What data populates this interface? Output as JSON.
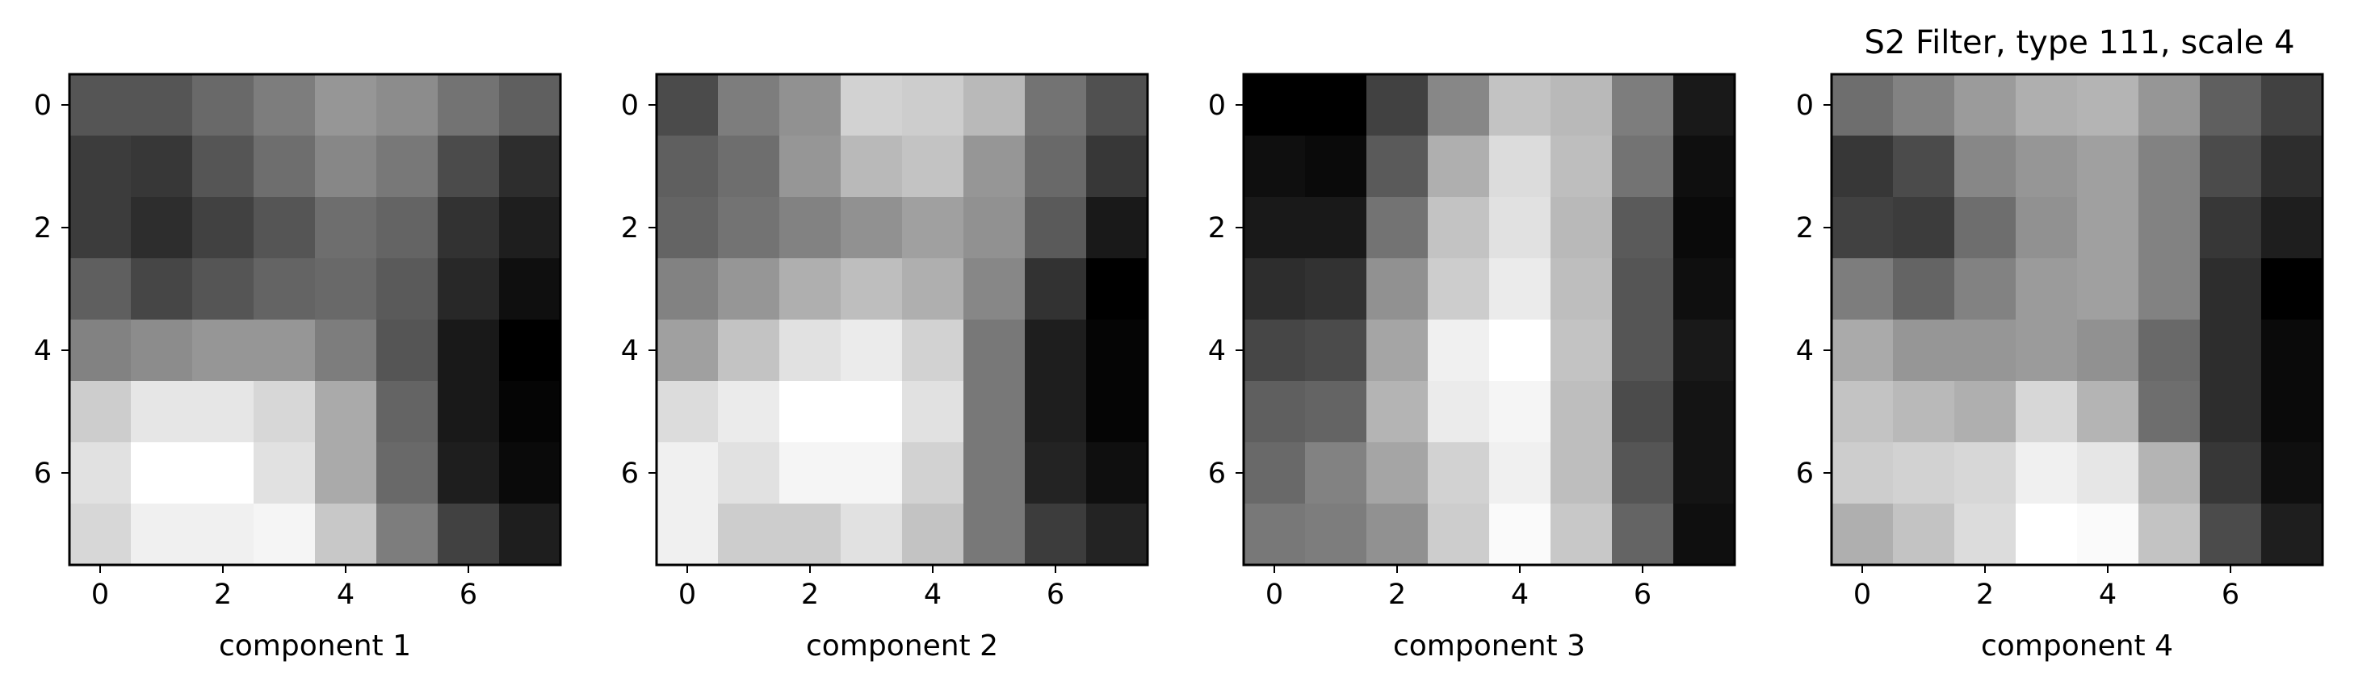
{
  "title": "S2 Filter, type 111, scale 4",
  "colormap": "gray",
  "chart_data": [
    {
      "type": "heatmap",
      "xlabel": "component 1",
      "xticks": [
        0,
        2,
        4,
        6
      ],
      "yticks": [
        0,
        2,
        4,
        6
      ],
      "xlim": [
        -0.5,
        7.5
      ],
      "ylim": [
        7.5,
        -0.5
      ],
      "values": [
        [
          85,
          85,
          105,
          125,
          150,
          140,
          115,
          95
        ],
        [
          60,
          55,
          85,
          110,
          135,
          120,
          75,
          45
        ],
        [
          60,
          45,
          65,
          85,
          110,
          100,
          50,
          30
        ],
        [
          95,
          70,
          85,
          100,
          105,
          90,
          40,
          15
        ],
        [
          130,
          140,
          150,
          150,
          125,
          85,
          25,
          0
        ],
        [
          205,
          230,
          230,
          215,
          170,
          100,
          25,
          5
        ],
        [
          225,
          255,
          255,
          225,
          170,
          105,
          30,
          10
        ],
        [
          215,
          240,
          240,
          245,
          200,
          125,
          65,
          30
        ]
      ]
    },
    {
      "type": "heatmap",
      "xlabel": "component 2",
      "xticks": [
        0,
        2,
        4,
        6
      ],
      "yticks": [
        0,
        2,
        4,
        6
      ],
      "xlim": [
        -0.5,
        7.5
      ],
      "ylim": [
        7.5,
        -0.5
      ],
      "values": [
        [
          75,
          125,
          145,
          210,
          205,
          185,
          115,
          80
        ],
        [
          95,
          110,
          150,
          185,
          195,
          150,
          105,
          55
        ],
        [
          100,
          115,
          130,
          145,
          160,
          145,
          90,
          25
        ],
        [
          130,
          150,
          175,
          190,
          175,
          135,
          50,
          0
        ],
        [
          160,
          195,
          225,
          235,
          210,
          120,
          30,
          5
        ],
        [
          220,
          235,
          255,
          255,
          225,
          120,
          30,
          5
        ],
        [
          240,
          225,
          245,
          245,
          210,
          120,
          35,
          15
        ],
        [
          240,
          205,
          205,
          225,
          195,
          120,
          60,
          35
        ]
      ]
    },
    {
      "type": "heatmap",
      "xlabel": "component 3",
      "xticks": [
        0,
        2,
        4,
        6
      ],
      "yticks": [
        0,
        2,
        4,
        6
      ],
      "xlim": [
        -0.5,
        7.5
      ],
      "ylim": [
        7.5,
        -0.5
      ],
      "values": [
        [
          0,
          0,
          65,
          135,
          195,
          185,
          125,
          25
        ],
        [
          15,
          10,
          90,
          175,
          220,
          190,
          115,
          15
        ],
        [
          25,
          25,
          115,
          195,
          225,
          185,
          90,
          10
        ],
        [
          45,
          50,
          145,
          205,
          235,
          190,
          85,
          15
        ],
        [
          70,
          75,
          165,
          240,
          255,
          195,
          85,
          25
        ],
        [
          95,
          100,
          180,
          235,
          245,
          190,
          75,
          20
        ],
        [
          105,
          130,
          165,
          210,
          240,
          190,
          85,
          20
        ],
        [
          120,
          125,
          145,
          205,
          250,
          200,
          100,
          15
        ]
      ]
    },
    {
      "type": "heatmap",
      "xlabel": "component 4",
      "xticks": [
        0,
        2,
        4,
        6
      ],
      "yticks": [
        0,
        2,
        4,
        6
      ],
      "xlim": [
        -0.5,
        7.5
      ],
      "ylim": [
        7.5,
        -0.5
      ],
      "values": [
        [
          110,
          130,
          155,
          175,
          180,
          150,
          95,
          65
        ],
        [
          55,
          75,
          135,
          150,
          160,
          130,
          75,
          45
        ],
        [
          65,
          60,
          110,
          145,
          160,
          130,
          55,
          30
        ],
        [
          125,
          100,
          130,
          155,
          160,
          130,
          45,
          0
        ],
        [
          170,
          150,
          150,
          155,
          145,
          105,
          45,
          10
        ],
        [
          195,
          185,
          175,
          215,
          180,
          110,
          45,
          10
        ],
        [
          205,
          210,
          215,
          240,
          230,
          180,
          55,
          15
        ],
        [
          175,
          195,
          220,
          255,
          250,
          195,
          75,
          30
        ]
      ]
    }
  ]
}
